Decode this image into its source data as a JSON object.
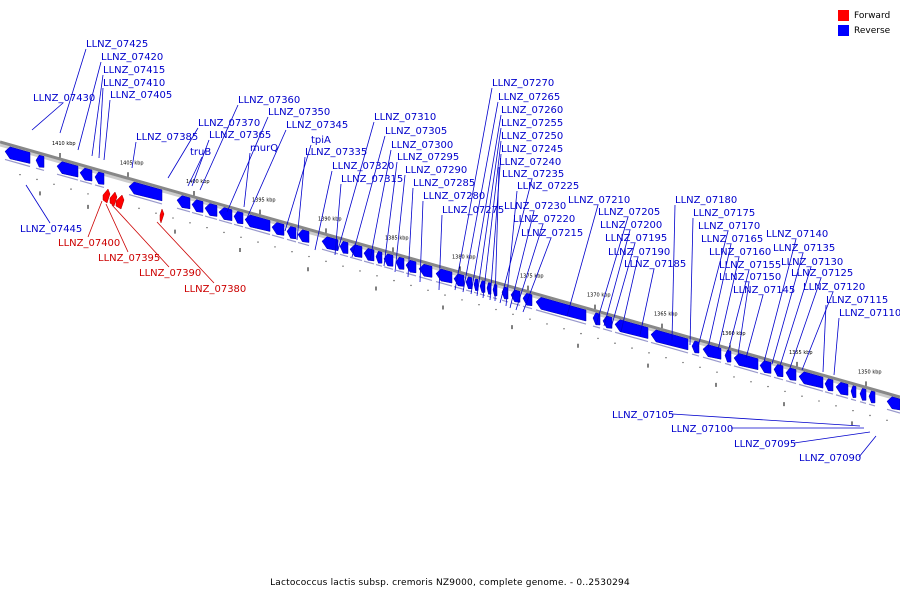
{
  "caption": "Lactococcus lactis subsp. cremoris NZ9000, complete genome. - 0..2530294",
  "legend": [
    {
      "label": "Forward",
      "color": "#ff0000"
    },
    {
      "label": "Reverse",
      "color": "#0000ff"
    }
  ],
  "colors": {
    "reverse": "#0000ff",
    "forward": "#ff0000",
    "backbone": "#888888"
  },
  "ticks": [
    "1410 kbp",
    "1405 kbp",
    "1400 kbp",
    "1395 kbp",
    "1390 kbp",
    "1385 kbp",
    "1380 kbp",
    "1375 kbp",
    "1370 kbp",
    "1365 kbp",
    "1360 kbp",
    "1355 kbp",
    "1350 kbp"
  ],
  "labels_reverse": [
    "LLNZ_07425",
    "LLNZ_07420",
    "LLNZ_07415",
    "LLNZ_07410",
    "LLNZ_07430",
    "LLNZ_07405",
    "LLNZ_07360",
    "LLNZ_07350",
    "LLNZ_07345",
    "LLNZ_07370",
    "LLNZ_07365",
    "LLNZ_07385",
    "truB",
    "murQ",
    "tpiA",
    "LLNZ_07335",
    "LLNZ_07320",
    "LLNZ_07315",
    "LLNZ_07310",
    "LLNZ_07305",
    "LLNZ_07300",
    "LLNZ_07295",
    "LLNZ_07290",
    "LLNZ_07285",
    "LLNZ_07280",
    "LLNZ_07275",
    "LLNZ_07270",
    "LLNZ_07265",
    "LLNZ_07260",
    "LLNZ_07255",
    "LLNZ_07250",
    "LLNZ_07245",
    "LLNZ_07240",
    "LLNZ_07235",
    "LLNZ_07225",
    "LLNZ_07230",
    "LLNZ_07220",
    "LLNZ_07215",
    "LLNZ_07210",
    "LLNZ_07205",
    "LLNZ_07200",
    "LLNZ_07195",
    "LLNZ_07190",
    "LLNZ_07185",
    "LLNZ_07180",
    "LLNZ_07175",
    "LLNZ_07170",
    "LLNZ_07165",
    "LLNZ_07160",
    "LLNZ_07155",
    "LLNZ_07150",
    "LLNZ_07145",
    "LLNZ_07140",
    "LLNZ_07135",
    "LLNZ_07130",
    "LLNZ_07125",
    "LLNZ_07120",
    "LLNZ_07115",
    "LLNZ_07110",
    "LLNZ_07445",
    "LLNZ_07105",
    "LLNZ_07100",
    "LLNZ_07095",
    "LLNZ_07090"
  ],
  "labels_forward": [
    "LLNZ_07400",
    "LLNZ_07395",
    "LLNZ_07390",
    "LLNZ_07380"
  ]
}
